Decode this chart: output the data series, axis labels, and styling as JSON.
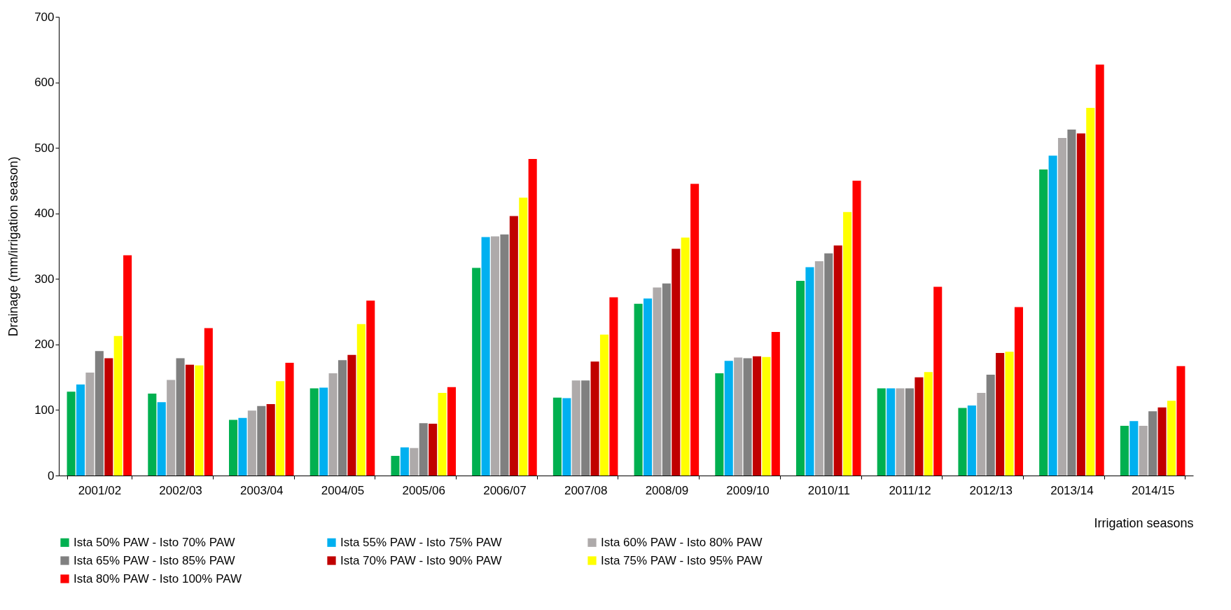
{
  "chart_data": {
    "type": "bar",
    "xlabel": "Irrigation seasons",
    "ylabel": "Drainage (mm/irrigation season)",
    "categories": [
      "2001/02",
      "2002/03",
      "2003/04",
      "2004/05",
      "2005/06",
      "2006/07",
      "2007/08",
      "2008/09",
      "2009/10",
      "2010/11",
      "2011/12",
      "2012/13",
      "2013/14",
      "2014/15"
    ],
    "series": [
      {
        "name": "Ista 50% PAW - Isto 70% PAW",
        "color": "#00b050",
        "values": [
          128,
          125,
          85,
          133,
          30,
          317,
          119,
          262,
          156,
          297,
          133,
          103,
          467,
          76
        ]
      },
      {
        "name": "Ista 55% PAW - Isto 75% PAW",
        "color": "#00b0f0",
        "values": [
          139,
          112,
          88,
          134,
          43,
          364,
          118,
          270,
          175,
          318,
          133,
          107,
          488,
          83
        ]
      },
      {
        "name": "Ista 60% PAW - Isto 80% PAW",
        "color": "#aeaaaa",
        "values": [
          157,
          146,
          99,
          156,
          42,
          365,
          145,
          287,
          180,
          327,
          133,
          126,
          515,
          76
        ]
      },
      {
        "name": "Ista 65% PAW - Isto 85% PAW",
        "color": "#808080",
        "values": [
          190,
          179,
          106,
          176,
          80,
          368,
          145,
          293,
          179,
          339,
          133,
          154,
          528,
          98
        ]
      },
      {
        "name": "Ista 70% PAW - Isto 90% PAW",
        "color": "#c00000",
        "values": [
          179,
          169,
          109,
          184,
          79,
          396,
          174,
          346,
          182,
          351,
          150,
          187,
          522,
          104
        ]
      },
      {
        "name": "Ista 75% PAW - Isto 95% PAW",
        "color": "#ffff00",
        "values": [
          213,
          168,
          144,
          231,
          126,
          424,
          215,
          363,
          181,
          402,
          158,
          189,
          561,
          114
        ]
      },
      {
        "name": "Ista 80% PAW - Isto 100% PAW",
        "color": "#ff0000",
        "values": [
          336,
          225,
          172,
          267,
          135,
          483,
          272,
          445,
          219,
          450,
          288,
          257,
          627,
          167
        ]
      }
    ],
    "ylim": [
      0,
      700
    ],
    "yticks": [
      0,
      100,
      200,
      300,
      400,
      500,
      600,
      700
    ],
    "grid": false,
    "legend": "bottom"
  }
}
